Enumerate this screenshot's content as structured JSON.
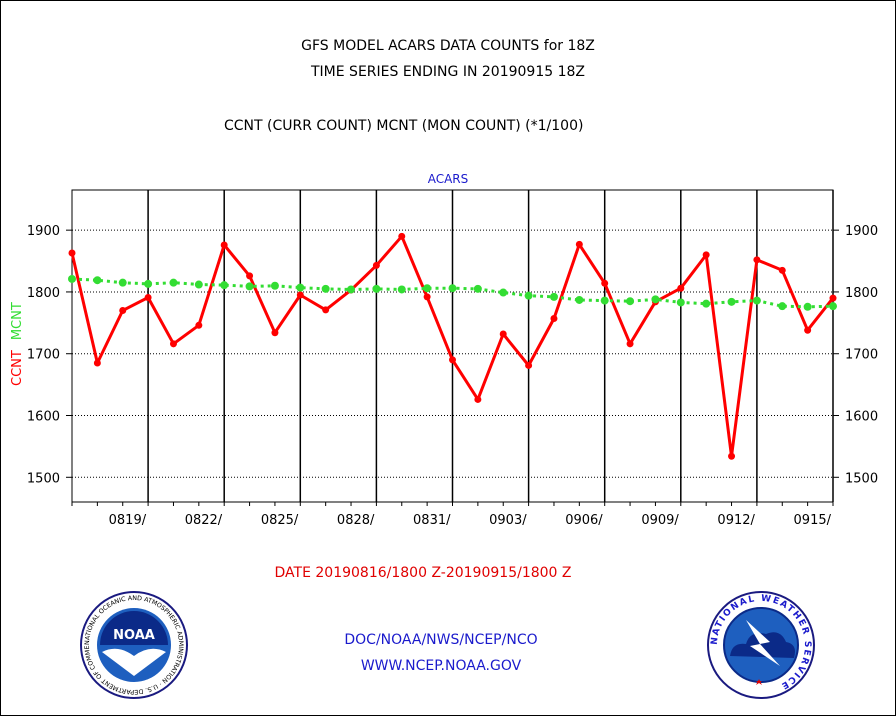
{
  "header": {
    "title_line1": "GFS MODEL ACARS DATA COUNTS for 18Z",
    "title_line2": "TIME SERIES ENDING IN 20190915 18Z",
    "subtitle": "CCNT (CURR COUNT) MCNT (MON COUNT) (*1/100)"
  },
  "footer": {
    "date_range": "DATE 20190816/1800 Z-20190915/1800 Z",
    "org": "DOC/NOAA/NWS/NCEP/NCO",
    "url": "WWW.NCEP.NOAA.GOV"
  },
  "logos": {
    "noaa_text": "NOAA",
    "noaa_ring": "NATIONAL OCEANIC AND ATMOSPHERIC ADMINISTRATION · U.S. DEPARTMENT OF COMMERCE ·",
    "nws_ring": "NATIONAL WEATHER SERVICE"
  },
  "colors": {
    "ccnt": "#ff0000",
    "mcnt": "#33dd33",
    "label_blue": "#1a1acc",
    "axis": "#000000"
  },
  "chart_data": {
    "type": "line",
    "title": "ACARS",
    "ylabel_parts": [
      {
        "text": "CCNT",
        "color": "#ff0000"
      },
      {
        "text": "MCNT",
        "color": "#33dd33"
      }
    ],
    "xlabel": "DATE 20190816/1800 Z-20190915/1800 Z",
    "x_start": "20190816",
    "x_end": "20190915",
    "ylim": [
      1460,
      1965
    ],
    "yticks": [
      1500,
      1600,
      1700,
      1800,
      1900
    ],
    "xticks": [
      {
        "date": "20190819",
        "label": "0819/"
      },
      {
        "date": "20190822",
        "label": "0822/"
      },
      {
        "date": "20190825",
        "label": "0825/"
      },
      {
        "date": "20190828",
        "label": "0828/"
      },
      {
        "date": "20190831",
        "label": "0831/"
      },
      {
        "date": "20190903",
        "label": "0903/"
      },
      {
        "date": "20190906",
        "label": "0906/"
      },
      {
        "date": "20190909",
        "label": "0909/"
      },
      {
        "date": "20190912",
        "label": "0912/"
      },
      {
        "date": "20190915",
        "label": "0915/"
      }
    ],
    "x": [
      "20190816",
      "20190817",
      "20190818",
      "20190819",
      "20190820",
      "20190821",
      "20190822",
      "20190823",
      "20190824",
      "20190825",
      "20190826",
      "20190827",
      "20190828",
      "20190829",
      "20190830",
      "20190831",
      "20190901",
      "20190902",
      "20190903",
      "20190904",
      "20190905",
      "20190906",
      "20190907",
      "20190908",
      "20190909",
      "20190910",
      "20190911",
      "20190912",
      "20190913",
      "20190914",
      "20190915"
    ],
    "grid": true,
    "legend": "none",
    "series": [
      {
        "name": "CCNT",
        "color": "#ff0000",
        "values": [
          1863,
          1685,
          1770,
          1791,
          1716,
          1746,
          1876,
          1826,
          1734,
          1795,
          1771,
          1803,
          1843,
          1890,
          1792,
          1690,
          1626,
          1732,
          1681,
          1757,
          1877,
          1814,
          1716,
          1784,
          1806,
          1860,
          1534,
          1852,
          1835,
          1738,
          1790
        ]
      },
      {
        "name": "MCNT",
        "color": "#33dd33",
        "values": [
          1821,
          1819,
          1815,
          1813,
          1815,
          1812,
          1811,
          1809,
          1810,
          1807,
          1805,
          1804,
          1805,
          1804,
          1806,
          1806,
          1805,
          1799,
          1794,
          1792,
          1787,
          1786,
          1785,
          1788,
          1783,
          1781,
          1784,
          1786,
          1777,
          1776,
          1777
        ]
      }
    ]
  }
}
